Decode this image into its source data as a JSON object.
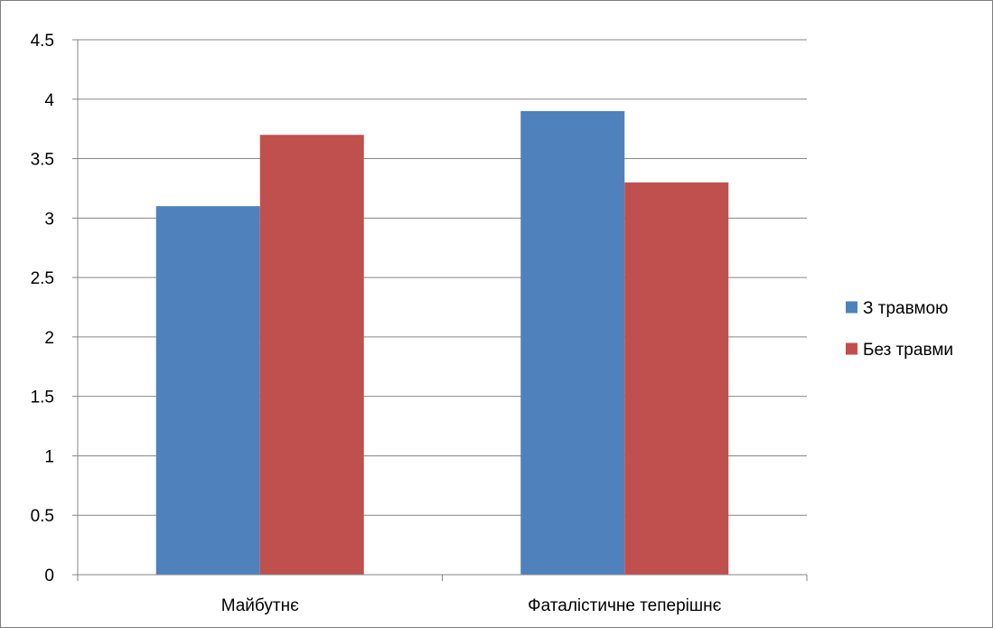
{
  "chart_data": {
    "type": "bar",
    "title": "",
    "xlabel": "",
    "ylabel": "",
    "categories": [
      "Майбутнє",
      "Фаталістичне теперішнє"
    ],
    "series": [
      {
        "name": "З травмою",
        "values": [
          3.1,
          3.9
        ],
        "color": "#4F81BD"
      },
      {
        "name": "Без травми",
        "values": [
          3.7,
          3.3
        ],
        "color": "#C0504D"
      }
    ],
    "ylim": [
      0,
      4.5
    ],
    "yticks": [
      "0",
      "0.5",
      "1",
      "1.5",
      "2",
      "2.5",
      "3",
      "3.5",
      "4",
      "4.5"
    ],
    "grid": true,
    "legend": "right"
  }
}
